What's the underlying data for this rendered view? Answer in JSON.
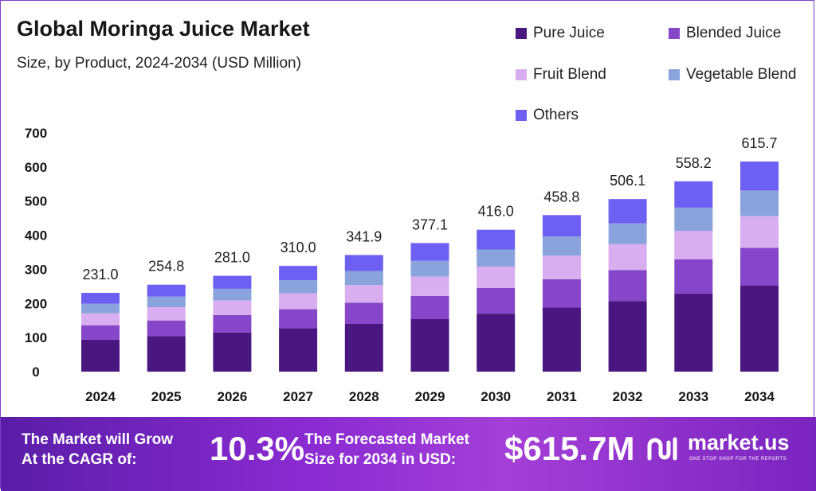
{
  "header": {
    "title": "Global Moringa Juice Market",
    "subtitle": "Size, by Product, 2024-2034 (USD Million)"
  },
  "legend": {
    "items": [
      {
        "label": "Pure Juice",
        "color": "#4a1680"
      },
      {
        "label": "Blended Juice",
        "color": "#8646c9"
      },
      {
        "label": "Fruit Blend",
        "color": "#d9aef0"
      },
      {
        "label": "Vegetable Blend",
        "color": "#8aa3dc"
      },
      {
        "label": "Others",
        "color": "#6d5ff2"
      }
    ]
  },
  "chart_data": {
    "type": "bar",
    "stacked": true,
    "categories": [
      "2024",
      "2025",
      "2026",
      "2027",
      "2028",
      "2029",
      "2030",
      "2031",
      "2032",
      "2033",
      "2034"
    ],
    "totals": [
      231.0,
      254.8,
      281.0,
      310.0,
      341.9,
      377.1,
      416.0,
      458.8,
      506.1,
      558.2,
      615.7
    ],
    "total_labels": [
      "231.0",
      "254.8",
      "281.0",
      "310.0",
      "341.9",
      "377.1",
      "416.0",
      "458.8",
      "506.1",
      "558.2",
      "615.7"
    ],
    "series": [
      {
        "name": "Pure Juice",
        "color": "#4a1680",
        "values": [
          94,
          104,
          115,
          127,
          140,
          154,
          170,
          188,
          207,
          229,
          252
        ]
      },
      {
        "name": "Blended Juice",
        "color": "#8646c9",
        "values": [
          42,
          46,
          51,
          56,
          62,
          68,
          75,
          83,
          91,
          100,
          111
        ]
      },
      {
        "name": "Fruit Blend",
        "color": "#d9aef0",
        "values": [
          35,
          39,
          43,
          47,
          52,
          57,
          63,
          69,
          76,
          84,
          93
        ]
      },
      {
        "name": "Vegetable Blend",
        "color": "#8aa3dc",
        "values": [
          28,
          31,
          34,
          38,
          41,
          46,
          50,
          56,
          61,
          68,
          75
        ]
      },
      {
        "name": "Others",
        "color": "#6d5ff2",
        "values": [
          32,
          35,
          38,
          42,
          47,
          52,
          58,
          63,
          71,
          77,
          85
        ]
      }
    ],
    "y_ticks": [
      0,
      100,
      200,
      300,
      400,
      500,
      600,
      700
    ],
    "ylim": [
      0,
      700
    ],
    "xlabel": "",
    "ylabel": "",
    "grid": false,
    "legend_position": "top-right"
  },
  "footer": {
    "cagr_label_line1": "The Market will Grow",
    "cagr_label_line2": "At the CAGR of:",
    "cagr_value": "10.3%",
    "forecast_label_line1": "The Forecasted Market",
    "forecast_label_line2": "Size for 2034 in USD:",
    "forecast_value": "$615.7M",
    "brand_name": "market.us",
    "brand_tagline": "ONE STOP SHOP FOR THE REPORTS"
  }
}
